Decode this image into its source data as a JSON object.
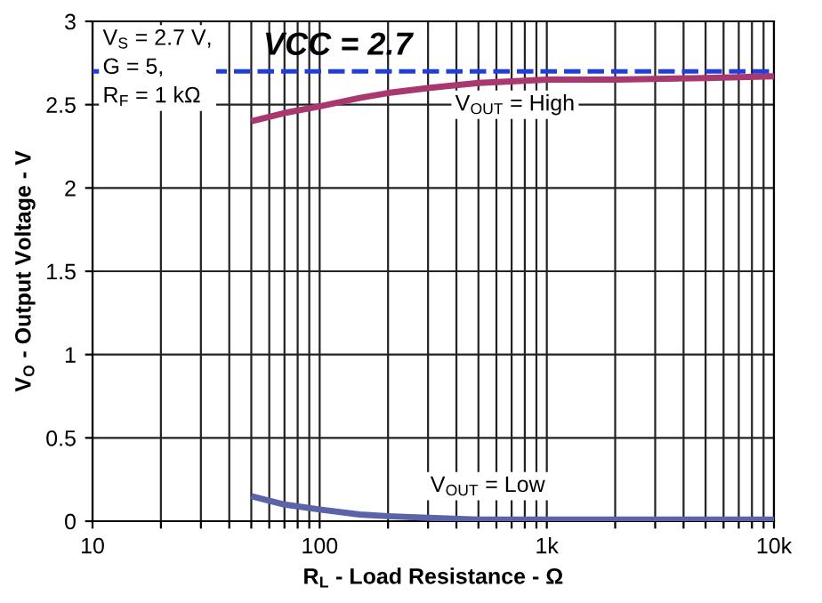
{
  "chart_data": {
    "type": "line",
    "xlabel": "R$_{L}$ - Load Resistance - Ω",
    "ylabel": "V$_{O}$ - Output Voltage - V",
    "log": "x",
    "xlim": [
      10,
      10000
    ],
    "ylim": [
      0,
      3
    ],
    "xticks": [
      10,
      {
        "value": 20,
        "label": null
      },
      {
        "value": 30,
        "label": null
      },
      {
        "value": 40,
        "label": null
      },
      {
        "value": 50,
        "label": null
      },
      {
        "value": 60,
        "label": null
      },
      {
        "value": 70,
        "label": null
      },
      {
        "value": 80,
        "label": null
      },
      {
        "value": 90,
        "label": null
      },
      100,
      {
        "value": 200,
        "label": null
      },
      {
        "value": 300,
        "label": null
      },
      {
        "value": 400,
        "label": null
      },
      {
        "value": 500,
        "label": null
      },
      {
        "value": 600,
        "label": null
      },
      {
        "value": 700,
        "label": null
      },
      {
        "value": 800,
        "label": null
      },
      {
        "value": 900,
        "label": null
      },
      {
        "value": 1000,
        "label": "1k"
      },
      {
        "value": 2000,
        "label": null
      },
      {
        "value": 3000,
        "label": null
      },
      {
        "value": 4000,
        "label": null
      },
      {
        "value": 5000,
        "label": null
      },
      {
        "value": 6000,
        "label": null
      },
      {
        "value": 7000,
        "label": null
      },
      {
        "value": 8000,
        "label": null
      },
      {
        "value": 9000,
        "label": null
      },
      {
        "value": 10000,
        "label": "10k"
      }
    ],
    "yticks": [
      0,
      0.5,
      1,
      1.5,
      2,
      2.5,
      3
    ],
    "grid": true,
    "line_style": "solid",
    "x": [
      50,
      70,
      100,
      150,
      200,
      300,
      500,
      700,
      1000,
      2000,
      5000,
      10000
    ],
    "series": [
      {
        "color": "#a8386e",
        "values": [
          2.4,
          2.45,
          2.49,
          2.54,
          2.57,
          2.6,
          2.63,
          2.64,
          2.65,
          2.65,
          2.66,
          2.67
        ]
      },
      {
        "color": "#5b64a8",
        "values": [
          0.15,
          0.1,
          0.07,
          0.04,
          0.03,
          0.02,
          0.01,
          0.01,
          0.01,
          0.01,
          0.01,
          0.01
        ]
      }
    ],
    "ref_lines": [
      {
        "axis": "y",
        "value": 2.7,
        "label": "VCC = 2.7",
        "color": "#1f3fd8",
        "line_style": "dashed"
      }
    ],
    "annotations": [
      "V$_{S}$ = 2.7 V,\nG = 5,\nR$_{F}$ = 1 kΩ",
      "V$_{OUT}$ = High",
      "V$_{OUT}$ = Low"
    ]
  }
}
